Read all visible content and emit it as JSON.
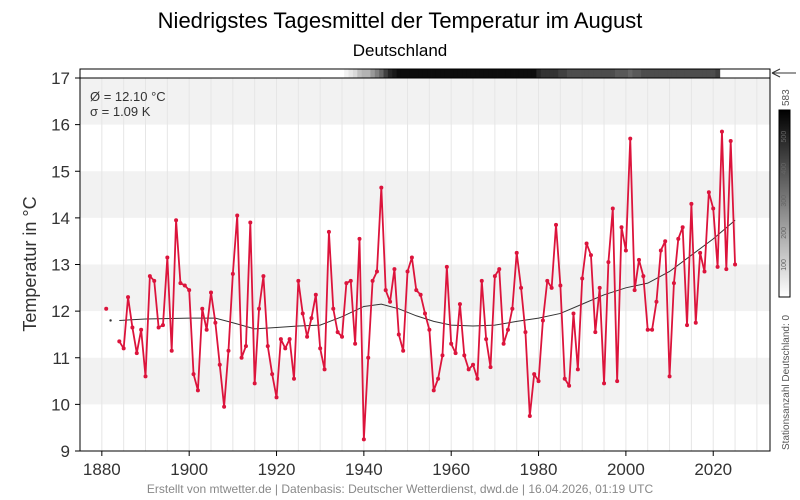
{
  "chart_data": {
    "type": "line",
    "title": "Niedrigstes Tagesmittel der Temperatur im August",
    "subtitle": "Deutschland",
    "xlabel": "",
    "ylabel": "Temperatur in °C",
    "xlim": [
      1875,
      2033
    ],
    "ylim": [
      9,
      17
    ],
    "xticks": [
      1880,
      1900,
      1920,
      1940,
      1960,
      1980,
      2000,
      2020
    ],
    "yticks": [
      9,
      10,
      11,
      12,
      13,
      14,
      15,
      16,
      17
    ],
    "grid": true,
    "stats": {
      "mean": "Ø = 12.10 °C",
      "sd": "σ = 1.09 K"
    },
    "colorbar": {
      "label": "Stationsanzahl Deutschland: 0",
      "max_label": "583",
      "ticks": [
        "100",
        "200",
        "300",
        "400",
        "500"
      ]
    },
    "footer": "Erstellt von mtwetter.de | Datenbasis: Deutscher Wetterdienst, dwd.de | 16.04.2026, 01:19 UTC",
    "colors": {
      "series": "#dc143c",
      "trend": "#333333"
    },
    "early_points": [
      {
        "x": 1881,
        "y": 12.05
      },
      {
        "x": 1882,
        "y": 11.8
      }
    ],
    "x": [
      1884,
      1885,
      1886,
      1887,
      1888,
      1889,
      1890,
      1891,
      1892,
      1893,
      1894,
      1895,
      1896,
      1897,
      1898,
      1899,
      1900,
      1901,
      1902,
      1903,
      1904,
      1905,
      1906,
      1907,
      1908,
      1909,
      1910,
      1911,
      1912,
      1913,
      1914,
      1915,
      1916,
      1917,
      1918,
      1919,
      1920,
      1921,
      1922,
      1923,
      1924,
      1925,
      1926,
      1927,
      1928,
      1929,
      1930,
      1931,
      1932,
      1933,
      1934,
      1935,
      1936,
      1937,
      1938,
      1939,
      1940,
      1941,
      1942,
      1943,
      1944,
      1945,
      1946,
      1947,
      1948,
      1949,
      1950,
      1951,
      1952,
      1953,
      1954,
      1955,
      1956,
      1957,
      1958,
      1959,
      1960,
      1961,
      1962,
      1963,
      1964,
      1965,
      1966,
      1967,
      1968,
      1969,
      1970,
      1971,
      1972,
      1973,
      1974,
      1975,
      1976,
      1977,
      1978,
      1979,
      1980,
      1981,
      1982,
      1983,
      1984,
      1985,
      1986,
      1987,
      1988,
      1989,
      1990,
      1991,
      1992,
      1993,
      1994,
      1995,
      1996,
      1997,
      1998,
      1999,
      2000,
      2001,
      2002,
      2003,
      2004,
      2005,
      2006,
      2007,
      2008,
      2009,
      2010,
      2011,
      2012,
      2013,
      2014,
      2015,
      2016,
      2017,
      2018,
      2019,
      2020,
      2021,
      2022,
      2023,
      2024,
      2025
    ],
    "y": [
      11.35,
      11.2,
      12.3,
      11.65,
      11.1,
      11.6,
      10.6,
      12.75,
      12.65,
      11.65,
      11.7,
      13.15,
      11.15,
      13.95,
      12.6,
      12.55,
      12.45,
      10.65,
      10.3,
      12.05,
      11.6,
      12.4,
      11.75,
      10.85,
      9.95,
      11.15,
      12.8,
      14.05,
      11.0,
      11.25,
      13.9,
      10.45,
      12.05,
      12.75,
      11.25,
      10.65,
      10.15,
      11.4,
      11.2,
      11.4,
      10.55,
      12.65,
      11.95,
      11.45,
      11.85,
      12.35,
      11.2,
      10.75,
      13.7,
      12.05,
      11.55,
      11.45,
      12.6,
      12.65,
      11.3,
      13.55,
      9.25,
      11.0,
      12.65,
      12.85,
      14.65,
      12.45,
      12.2,
      12.9,
      11.5,
      11.15,
      12.85,
      13.15,
      12.45,
      12.35,
      11.95,
      11.6,
      10.3,
      10.55,
      11.05,
      12.95,
      11.3,
      11.1,
      12.15,
      11.05,
      10.75,
      10.85,
      10.55,
      12.65,
      11.4,
      10.8,
      12.75,
      12.9,
      11.3,
      11.6,
      12.05,
      13.25,
      12.5,
      11.55,
      9.75,
      10.65,
      10.5,
      11.8,
      12.65,
      12.5,
      13.85,
      12.55,
      10.55,
      10.4,
      11.95,
      10.75,
      12.7,
      13.45,
      13.2,
      11.55,
      12.5,
      10.45,
      13.05,
      14.2,
      10.5,
      13.8,
      13.3,
      15.7,
      12.45,
      13.1,
      12.75,
      11.6,
      11.6,
      12.2,
      13.3,
      13.5,
      10.6,
      12.6,
      13.55,
      13.8,
      11.7,
      14.3,
      11.75,
      13.25,
      12.85,
      14.55,
      14.2,
      12.95,
      15.85,
      12.9,
      15.65,
      13.0
    ],
    "trend": [
      [
        1884,
        11.8
      ],
      [
        1890,
        11.83
      ],
      [
        1900,
        11.85
      ],
      [
        1906,
        11.85
      ],
      [
        1910,
        11.75
      ],
      [
        1915,
        11.62
      ],
      [
        1920,
        11.65
      ],
      [
        1925,
        11.68
      ],
      [
        1930,
        11.7
      ],
      [
        1935,
        11.88
      ],
      [
        1940,
        12.1
      ],
      [
        1944,
        12.15
      ],
      [
        1948,
        12.05
      ],
      [
        1952,
        11.9
      ],
      [
        1956,
        11.78
      ],
      [
        1960,
        11.7
      ],
      [
        1965,
        11.68
      ],
      [
        1970,
        11.7
      ],
      [
        1975,
        11.78
      ],
      [
        1980,
        11.85
      ],
      [
        1985,
        11.95
      ],
      [
        1990,
        12.15
      ],
      [
        1995,
        12.35
      ],
      [
        2000,
        12.5
      ],
      [
        2005,
        12.6
      ],
      [
        2010,
        12.85
      ],
      [
        2015,
        13.2
      ],
      [
        2020,
        13.55
      ],
      [
        2025,
        13.95
      ]
    ],
    "station_density": [
      0,
      0,
      0,
      0,
      0,
      0,
      0,
      0,
      0,
      0,
      0,
      0,
      0,
      0,
      0,
      0,
      0,
      0,
      0,
      0,
      0,
      0,
      0,
      0,
      0,
      0,
      0,
      0,
      0,
      0,
      0,
      0,
      0,
      0,
      0,
      0,
      0,
      0,
      0,
      0,
      0,
      0,
      0,
      0,
      0,
      0,
      0,
      0,
      0,
      0,
      0,
      0,
      0,
      0,
      0,
      0.05,
      0.1,
      0.15,
      0.25,
      0.3,
      0.3,
      0.4,
      0.5,
      0.6,
      0.75,
      0.85,
      0.9,
      0.95,
      0.95,
      0.95,
      0.95,
      0.95,
      0.95,
      0.95,
      0.95,
      0.95,
      0.95,
      0.95,
      0.95,
      0.95,
      0.95,
      0.95,
      0.95,
      0.95,
      0.95,
      0.95,
      0.95,
      0.95,
      0.95,
      0.95,
      0.95,
      0.95,
      0.95,
      0.95,
      0.95,
      0.95,
      0.95,
      0.95,
      0.95,
      0.85,
      0.8,
      0.8,
      0.8,
      0.8,
      0.75,
      0.75,
      0.7,
      0.7,
      0.7,
      0.7,
      0.7,
      0.7,
      0.7,
      0.7,
      0.7,
      0.7,
      0.7,
      0.65,
      0.65,
      0.65,
      0.6,
      0.65,
      0.65,
      0.7,
      0.7,
      0.7,
      0.7,
      0.7,
      0.7,
      0.7,
      0.7,
      0.7,
      0.7,
      0.7,
      0.7,
      0.7,
      0.7,
      0.7,
      0.7,
      0.7,
      0.75
    ]
  }
}
